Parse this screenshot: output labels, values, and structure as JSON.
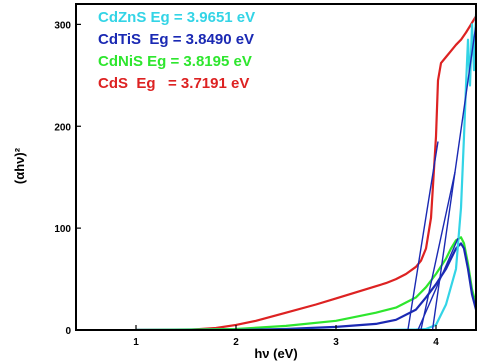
{
  "chart_data": {
    "type": "line",
    "xlabel": "hν (eV)",
    "ylabel": "(αhν)²",
    "xlim": [
      0.4,
      4.4
    ],
    "ylim": [
      0,
      320
    ],
    "x_ticks": [
      "1",
      "2",
      "3",
      "4"
    ],
    "y_ticks": [
      "0",
      "100",
      "200",
      "300"
    ],
    "legend_position": "top-left",
    "series": [
      {
        "name": "CdZnS Eg = 3.9651 eV",
        "color": "#33d4e6",
        "points": [
          [
            1.0,
            0
          ],
          [
            2.0,
            0
          ],
          [
            3.0,
            0
          ],
          [
            3.5,
            0
          ],
          [
            3.8,
            0.5
          ],
          [
            3.9,
            1
          ],
          [
            4.0,
            5
          ],
          [
            4.1,
            25
          ],
          [
            4.2,
            60
          ],
          [
            4.25,
            120
          ],
          [
            4.28,
            190
          ],
          [
            4.3,
            240
          ],
          [
            4.32,
            285
          ],
          [
            4.34,
            240
          ],
          [
            4.36,
            300
          ],
          [
            4.38,
            255
          ],
          [
            4.4,
            310
          ]
        ],
        "fit": [
          [
            3.9651,
            0
          ],
          [
            4.4,
            300
          ]
        ]
      },
      {
        "name": "CdTiS  Eg = 3.8490 eV",
        "color": "#1a29b3",
        "points": [
          [
            1.0,
            0
          ],
          [
            2.0,
            0
          ],
          [
            2.5,
            1
          ],
          [
            3.0,
            3
          ],
          [
            3.4,
            6
          ],
          [
            3.6,
            10
          ],
          [
            3.8,
            20
          ],
          [
            3.9,
            32
          ],
          [
            4.0,
            45
          ],
          [
            4.1,
            60
          ],
          [
            4.15,
            70
          ],
          [
            4.2,
            80
          ],
          [
            4.25,
            85
          ],
          [
            4.28,
            80
          ],
          [
            4.32,
            60
          ],
          [
            4.36,
            35
          ],
          [
            4.4,
            20
          ]
        ],
        "fit": [
          [
            3.849,
            0
          ],
          [
            4.19,
            155
          ]
        ]
      },
      {
        "name": "CdNiS Eg = 3.8195 eV",
        "color": "#2ee62e",
        "points": [
          [
            1.0,
            0
          ],
          [
            2.0,
            1
          ],
          [
            2.5,
            4
          ],
          [
            3.0,
            9
          ],
          [
            3.4,
            17
          ],
          [
            3.6,
            22
          ],
          [
            3.8,
            32
          ],
          [
            3.9,
            42
          ],
          [
            4.0,
            55
          ],
          [
            4.1,
            70
          ],
          [
            4.15,
            80
          ],
          [
            4.2,
            88
          ],
          [
            4.25,
            91
          ],
          [
            4.28,
            85
          ],
          [
            4.32,
            65
          ],
          [
            4.36,
            40
          ],
          [
            4.4,
            25
          ]
        ],
        "fit": [
          [
            3.8195,
            0
          ],
          [
            4.22,
            90
          ]
        ]
      },
      {
        "name": "CdS  Eg   = 3.7191 eV",
        "color": "#dd2222",
        "points": [
          [
            1.0,
            0
          ],
          [
            1.5,
            0
          ],
          [
            1.8,
            2
          ],
          [
            2.0,
            5
          ],
          [
            2.2,
            9
          ],
          [
            2.5,
            17
          ],
          [
            2.8,
            25
          ],
          [
            3.0,
            31
          ],
          [
            3.2,
            37
          ],
          [
            3.4,
            43
          ],
          [
            3.5,
            46
          ],
          [
            3.6,
            50
          ],
          [
            3.7,
            55
          ],
          [
            3.8,
            62
          ],
          [
            3.85,
            68
          ],
          [
            3.9,
            80
          ],
          [
            3.95,
            110
          ],
          [
            4.0,
            190
          ],
          [
            4.02,
            245
          ],
          [
            4.05,
            262
          ],
          [
            4.1,
            268
          ],
          [
            4.15,
            274
          ],
          [
            4.2,
            280
          ],
          [
            4.25,
            285
          ],
          [
            4.3,
            292
          ],
          [
            4.35,
            300
          ],
          [
            4.4,
            308
          ]
        ],
        "fit": [
          [
            3.7191,
            0
          ],
          [
            4.02,
            185
          ]
        ]
      }
    ]
  }
}
